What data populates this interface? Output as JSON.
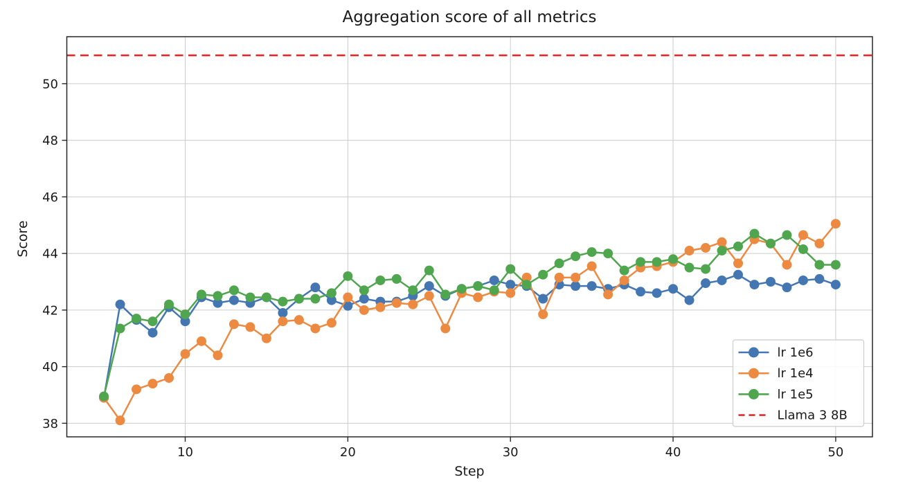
{
  "chart_data": {
    "type": "line",
    "title": "Aggregation score of all metrics",
    "xlabel": "Step",
    "ylabel": "Score",
    "grid": true,
    "legend_position": "lower right",
    "xlim": [
      2.72,
      52.26
    ],
    "ylim": [
      37.52,
      51.66
    ],
    "xticks": [
      10,
      20,
      30,
      40,
      50
    ],
    "yticks": [
      38,
      40,
      42,
      44,
      46,
      48,
      50
    ],
    "x": [
      5,
      6,
      7,
      8,
      9,
      10,
      11,
      12,
      13,
      14,
      15,
      16,
      17,
      18,
      19,
      20,
      21,
      22,
      23,
      24,
      25,
      26,
      27,
      28,
      29,
      30,
      31,
      32,
      33,
      34,
      35,
      36,
      37,
      38,
      39,
      40,
      41,
      42,
      43,
      44,
      45,
      46,
      47,
      48,
      49,
      50
    ],
    "series": [
      {
        "name": "lr 1e6",
        "color": "#4477b2",
        "marker": "circle",
        "values": [
          38.9,
          42.2,
          41.65,
          41.2,
          42.1,
          41.6,
          42.45,
          42.25,
          42.35,
          42.25,
          42.45,
          41.9,
          42.4,
          42.8,
          42.35,
          42.15,
          42.4,
          42.3,
          42.3,
          42.5,
          42.85,
          42.5,
          42.75,
          42.85,
          43.05,
          42.9,
          42.85,
          42.4,
          42.9,
          42.85,
          42.85,
          42.75,
          42.9,
          42.65,
          42.6,
          42.75,
          42.35,
          42.95,
          43.05,
          43.25,
          42.9,
          43.0,
          42.8,
          43.05,
          43.1,
          42.9
        ]
      },
      {
        "name": "lr 1e4",
        "color": "#ec8a42",
        "marker": "circle",
        "values": [
          38.9,
          38.1,
          39.2,
          39.4,
          39.6,
          40.45,
          40.9,
          40.4,
          41.5,
          41.4,
          41.0,
          41.6,
          41.65,
          41.35,
          41.55,
          42.45,
          42.0,
          42.1,
          42.25,
          42.2,
          42.5,
          41.35,
          42.6,
          42.45,
          42.65,
          42.6,
          43.15,
          41.85,
          43.15,
          43.15,
          43.55,
          42.55,
          43.05,
          43.5,
          43.55,
          43.7,
          44.1,
          44.2,
          44.4,
          43.65,
          44.5,
          44.35,
          43.6,
          44.65,
          44.35,
          45.05
        ]
      },
      {
        "name": "lr 1e5",
        "color": "#4fa64f",
        "marker": "circle",
        "values": [
          38.95,
          41.35,
          41.7,
          41.6,
          42.2,
          41.85,
          42.55,
          42.5,
          42.7,
          42.45,
          42.45,
          42.3,
          42.4,
          42.4,
          42.6,
          43.2,
          42.7,
          43.05,
          43.1,
          42.7,
          43.4,
          42.55,
          42.75,
          42.85,
          42.7,
          43.45,
          42.9,
          43.25,
          43.65,
          43.9,
          44.05,
          44.0,
          43.4,
          43.7,
          43.7,
          43.8,
          43.5,
          43.45,
          44.1,
          44.25,
          44.7,
          44.35,
          44.65,
          44.15,
          43.6,
          43.6
        ]
      }
    ],
    "hline": {
      "name": "Llama 3 8B",
      "value": 51.0,
      "color": "#e32929",
      "style": "dashed"
    },
    "legend_entries": [
      "lr 1e6",
      "lr 1e4",
      "lr 1e5",
      "Llama 3 8B"
    ],
    "colors": {
      "grid": "#cccccc",
      "spine": "#262626",
      "background": "#ffffff",
      "legend_border": "#cccccc"
    }
  }
}
